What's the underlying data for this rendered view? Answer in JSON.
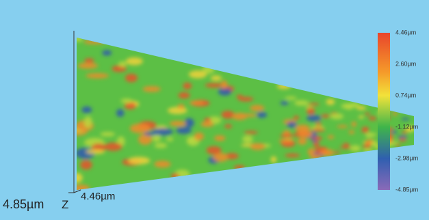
{
  "colorbar": {
    "ticks": [
      "4.46µm",
      "2.60µm",
      "0.74µm",
      "-1.12µm",
      "-2.98µm",
      "-4.85µm"
    ]
  },
  "axes": {
    "left_label": "4.85µm",
    "z_label": "Z",
    "bottom_label": "4.46µm"
  }
}
